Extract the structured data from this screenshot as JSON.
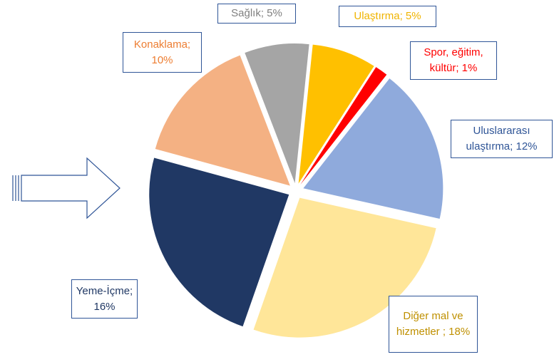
{
  "chart_data": {
    "type": "pie",
    "labels": [
      "Sağlık; 5%",
      "Ulaştırma; 5%",
      "Spor, eğitim, kültür; 1%",
      "Uluslararası ulaştırma; 12%",
      "Diğer mal ve hizmetler ; 18%",
      "Yeme-İçme; 16%",
      "Konaklama; 10%"
    ],
    "values": [
      5,
      5,
      1,
      12,
      18,
      16,
      10
    ],
    "colors": [
      "#a5a5a5",
      "#ffc000",
      "#ff0000",
      "#8faadc",
      "#ffe699",
      "#203864",
      "#f4b183"
    ],
    "label_colors": [
      "#7f7f7f",
      "#f0b400",
      "#ff0000",
      "#2f5597",
      "#bf9000",
      "#203864",
      "#ed7d31"
    ]
  }
}
